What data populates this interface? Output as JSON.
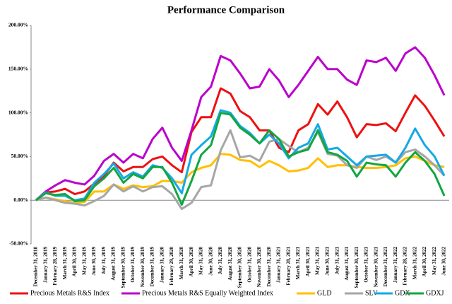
{
  "chart_data": {
    "type": "line",
    "title": "Performance Comparison",
    "categories": [
      "December 31, 2018",
      "January 31, 2019",
      "February 28, 2019",
      "March 31, 2019",
      "April 30, 2019",
      "May 31, 2019",
      "June 30, 2019",
      "July 31, 2019",
      "August 31, 2019",
      "September 30, 2019",
      "October 31, 2019",
      "November 30, 2019",
      "December 31, 2019",
      "January 31, 2020",
      "February 29, 2020",
      "March 31, 2020",
      "April 30, 2020",
      "May 31, 2020",
      "June 30, 2020",
      "July 31, 2020",
      "August 31, 2020",
      "September 30, 2020",
      "October 31, 2020",
      "November 30, 2020",
      "December 31, 2020",
      "January 31, 2021",
      "February 28, 2021",
      "March 31, 2021",
      "April 30, 2021",
      "May 31, 2021",
      "June 30, 2021",
      "July 31, 2021",
      "August 31, 2021",
      "September 30, 2021",
      "October 31, 2021",
      "November 30, 2021",
      "December 31, 2021",
      "January 31, 2022",
      "February 28, 2022",
      "March 31, 2022",
      "April 30, 2022",
      "May 31, 2022",
      "June 30, 2022"
    ],
    "series": [
      {
        "name": "Precious Metals R&S Index",
        "color": "#ee1111",
        "values": [
          0,
          9,
          10,
          13,
          7,
          10,
          19,
          28,
          43,
          33,
          38,
          38,
          47,
          50,
          40,
          32,
          78,
          95,
          95,
          128,
          122,
          102,
          95,
          80,
          80,
          60,
          55,
          80,
          87,
          110,
          98,
          113,
          95,
          72,
          87,
          86,
          88,
          79,
          100,
          120,
          108,
          91,
          73
        ]
      },
      {
        "name": "Precious Metals R&S Equally Weighted Index",
        "color": "#bb00cc",
        "values": [
          0,
          10,
          17,
          23,
          20,
          18,
          28,
          45,
          53,
          43,
          53,
          48,
          70,
          83,
          60,
          45,
          80,
          118,
          130,
          165,
          160,
          145,
          128,
          130,
          150,
          137,
          118,
          132,
          148,
          164,
          150,
          150,
          138,
          132,
          160,
          158,
          163,
          148,
          168,
          175,
          163,
          143,
          120
        ]
      },
      {
        "name": "GLD",
        "color": "#ffc000",
        "values": [
          0,
          3,
          1,
          -1,
          -3,
          -2,
          10,
          10,
          18,
          13,
          17,
          15,
          16,
          22,
          22,
          20,
          32,
          37,
          40,
          53,
          52,
          46,
          45,
          38,
          45,
          40,
          33,
          34,
          37,
          48,
          38,
          40,
          40,
          38,
          37,
          37,
          38,
          40,
          48,
          50,
          45,
          40,
          38
        ]
      },
      {
        "name": "SLV",
        "color": "#a6a6a6",
        "values": [
          0,
          3,
          0,
          -3,
          -4,
          -6,
          -1,
          5,
          18,
          10,
          16,
          10,
          15,
          16,
          7,
          -10,
          -3,
          15,
          17,
          57,
          80,
          49,
          51,
          45,
          67,
          70,
          62,
          55,
          60,
          78,
          53,
          51,
          40,
          37,
          50,
          46,
          50,
          43,
          55,
          58,
          50,
          40,
          28
        ]
      },
      {
        "name": "GDX",
        "color": "#14a9e6",
        "values": [
          0,
          9,
          5,
          5,
          0,
          2,
          20,
          30,
          42,
          25,
          32,
          27,
          40,
          37,
          25,
          8,
          52,
          63,
          73,
          103,
          100,
          85,
          77,
          65,
          75,
          65,
          48,
          60,
          65,
          87,
          58,
          60,
          50,
          40,
          50,
          51,
          52,
          43,
          60,
          82,
          63,
          50,
          28
        ]
      },
      {
        "name": "GDXJ",
        "color": "#12a640",
        "values": [
          0,
          8,
          6,
          7,
          -1,
          0,
          16,
          25,
          37,
          20,
          30,
          25,
          38,
          38,
          20,
          -5,
          22,
          52,
          63,
          100,
          98,
          83,
          75,
          65,
          80,
          70,
          50,
          55,
          58,
          80,
          55,
          52,
          45,
          27,
          43,
          41,
          40,
          27,
          43,
          55,
          45,
          30,
          5
        ]
      }
    ],
    "ylim": [
      -50,
      200
    ],
    "yticks": [
      {
        "value": -50,
        "label": "-50.00%"
      },
      {
        "value": 0,
        "label": "0.00%"
      },
      {
        "value": 50,
        "label": "50.00%"
      },
      {
        "value": 100,
        "label": "100.00%"
      },
      {
        "value": 150,
        "label": "150.00%"
      },
      {
        "value": 200,
        "label": "200.00%"
      }
    ],
    "legend": "bottom"
  }
}
